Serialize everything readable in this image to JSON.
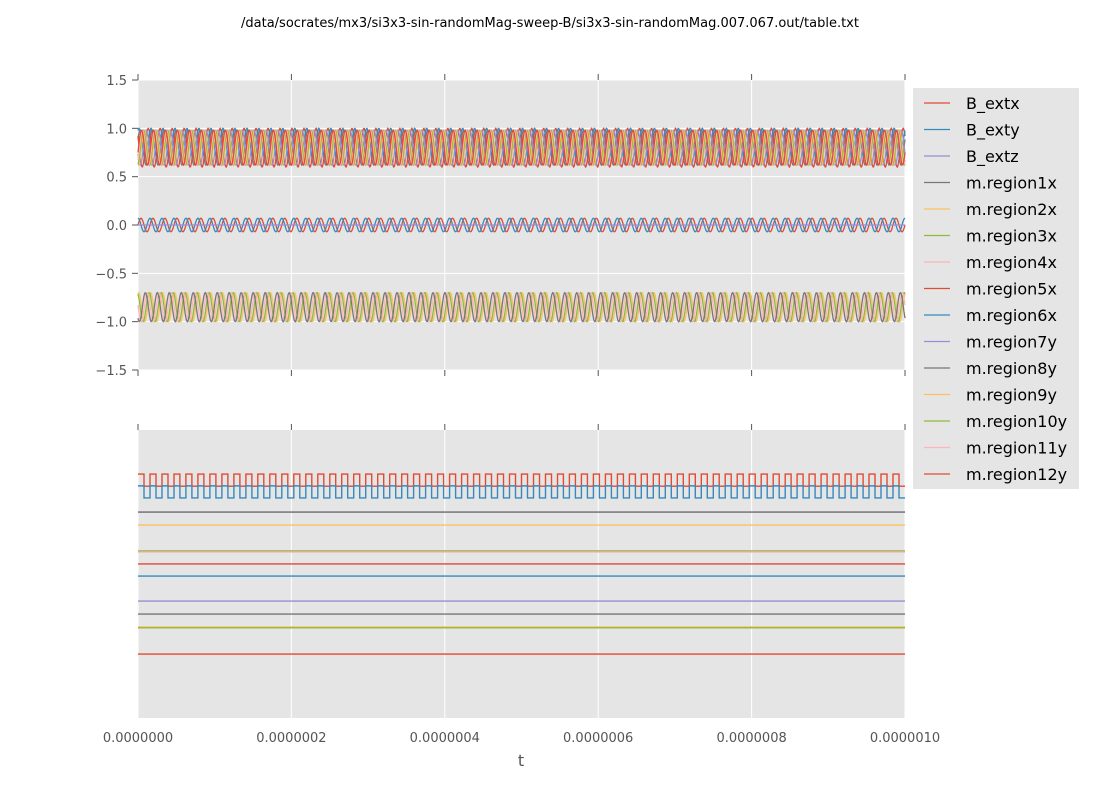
{
  "chart_data": [
    {
      "type": "line",
      "title": "/data/socrates/mx3/si3x3-sin-randomMag-sweep-B/si3x3-sin-randomMag.007.067.out/table.txt",
      "xlabel": "t",
      "ylabel": "",
      "xlim": [
        0,
        1e-06
      ],
      "ylim": [
        -1.5,
        1.5
      ],
      "yticks": [
        "1.5",
        "1.0",
        "0.5",
        "0.0",
        "−0.5",
        "−1.0",
        "−1.5"
      ],
      "ytick_values": [
        1.5,
        1.0,
        0.5,
        0.0,
        -0.5,
        -1.0,
        -1.5
      ],
      "grid": true,
      "legend": "right",
      "series": [
        {
          "name": "B_extx",
          "color": "#E24A33",
          "offset": 0,
          "amplitude": 0.07,
          "cycles": 64,
          "phase": 0
        },
        {
          "name": "B_exty",
          "color": "#348ABD",
          "offset": 0,
          "amplitude": 0.07,
          "cycles": 64,
          "phase": 1.57
        },
        {
          "name": "B_extz",
          "color": "#988ED5",
          "offset": 0,
          "amplitude": 0,
          "cycles": 0,
          "phase": 0
        },
        {
          "name": "m.region1x",
          "color": "#777777",
          "offset": 0.8,
          "amplitude": 0.18,
          "cycles": 64,
          "phase": 0.5
        },
        {
          "name": "m.region2x",
          "color": "#FBC15E",
          "offset": -0.85,
          "amplitude": 0.15,
          "cycles": 64,
          "phase": 1.2
        },
        {
          "name": "m.region3x",
          "color": "#8EBA42",
          "offset": -0.85,
          "amplitude": 0.15,
          "cycles": 64,
          "phase": 2.0
        },
        {
          "name": "m.region4x",
          "color": "#FFB5B8",
          "offset": -0.85,
          "amplitude": 0.15,
          "cycles": 64,
          "phase": 3.0
        },
        {
          "name": "m.region5x",
          "color": "#E24A33",
          "offset": 0.8,
          "amplitude": 0.2,
          "cycles": 64,
          "phase": 2.5
        },
        {
          "name": "m.region6x",
          "color": "#348ABD",
          "offset": 0.85,
          "amplitude": 0.15,
          "cycles": 64,
          "phase": 1.0
        },
        {
          "name": "m.region7y",
          "color": "#988ED5",
          "offset": 0.8,
          "amplitude": 0.18,
          "cycles": 64,
          "phase": 3.5
        },
        {
          "name": "m.region8y",
          "color": "#777777",
          "offset": -0.85,
          "amplitude": 0.15,
          "cycles": 64,
          "phase": 4.0
        },
        {
          "name": "m.region9y",
          "color": "#FBC15E",
          "offset": 0.8,
          "amplitude": 0.18,
          "cycles": 64,
          "phase": 4.5
        },
        {
          "name": "m.region10y",
          "color": "#8EBA42",
          "offset": 0.8,
          "amplitude": 0.18,
          "cycles": 64,
          "phase": 5.0
        },
        {
          "name": "m.region11y",
          "color": "#FFB5B8",
          "offset": 0.8,
          "amplitude": 0.18,
          "cycles": 64,
          "phase": 5.5
        },
        {
          "name": "m.region12y",
          "color": "#E24A33",
          "offset": 0.8,
          "amplitude": 0.18,
          "cycles": 64,
          "phase": 6.0
        }
      ]
    },
    {
      "type": "line",
      "xlabel": "t",
      "xlim": [
        0,
        1e-06
      ],
      "ylim": [
        0,
        1
      ],
      "xticks": [
        "0.0000000",
        "0.0000002",
        "0.0000004",
        "0.0000006",
        "0.0000008",
        "0.0000010"
      ],
      "xtick_values": [
        0,
        2e-07,
        4e-07,
        6e-07,
        8e-07,
        1e-06
      ],
      "grid": true,
      "series": [
        {
          "color": "#E24A33",
          "low": 0.805,
          "high": 0.847,
          "cycles": 64
        },
        {
          "color": "#348ABD",
          "low": 0.764,
          "high": 0.806,
          "cycles": 64
        },
        {
          "color": "#988ED5",
          "level": 0.715
        },
        {
          "color": "#777777",
          "level": 0.715
        },
        {
          "color": "#FBC15E",
          "level": 0.67
        },
        {
          "color": "#8EBA42",
          "level": 0.58
        },
        {
          "color": "#FFB5B8",
          "level": 0.576
        },
        {
          "color": "#E24A33",
          "level": 0.535
        },
        {
          "color": "#348ABD",
          "level": 0.493
        },
        {
          "color": "#988ED5",
          "level": 0.406
        },
        {
          "color": "#777777",
          "level": 0.361
        },
        {
          "color": "#FBC15E",
          "level": 0.316
        },
        {
          "color": "#8EBA42",
          "level": 0.313
        },
        {
          "color": "#E24A33",
          "level": 0.222
        }
      ]
    }
  ]
}
